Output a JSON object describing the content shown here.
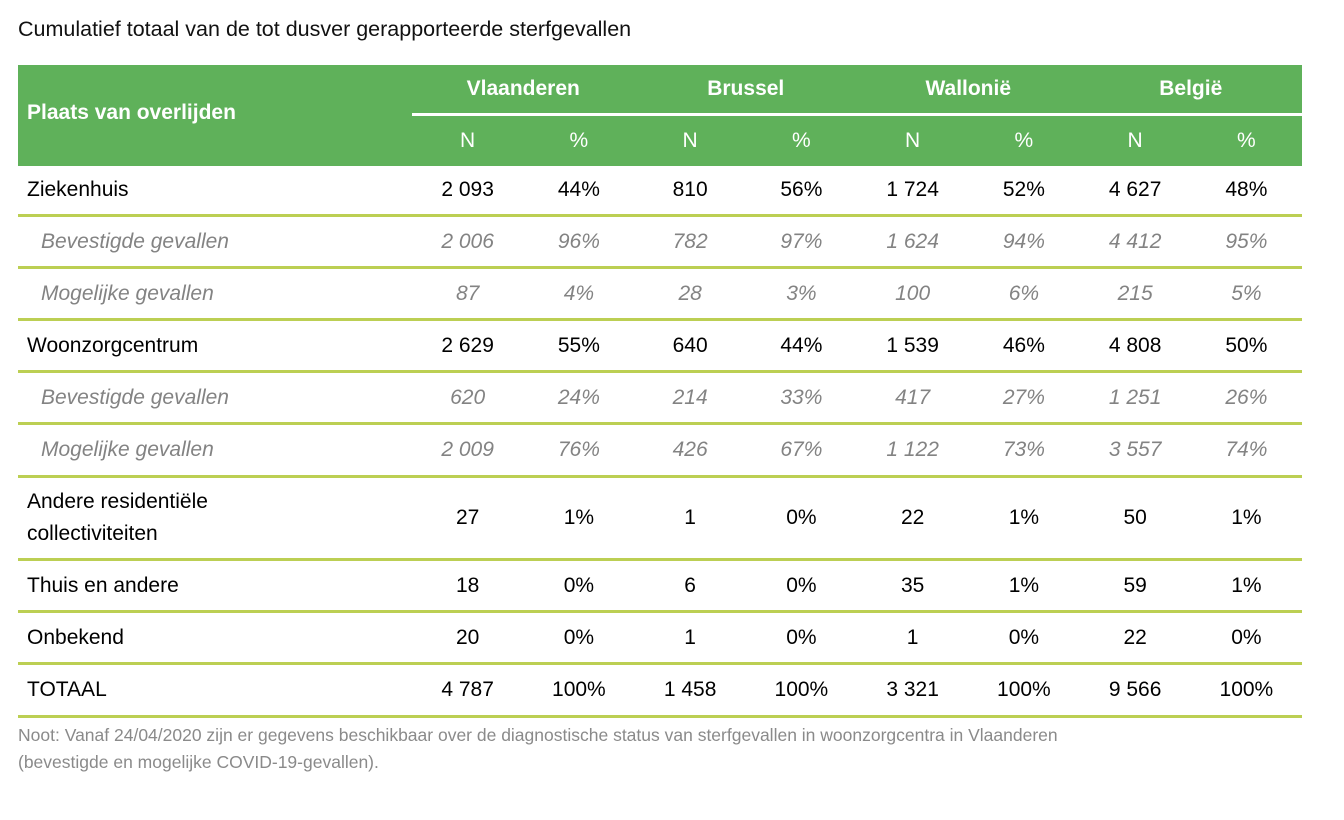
{
  "title": "Cumulatief totaal van de tot dusver gerapporteerde sterfgevallen",
  "table": {
    "header": {
      "place_label": "Plaats van overlijden",
      "regions": [
        "Vlaanderen",
        "Brussel",
        "Wallonië",
        "België"
      ],
      "subcolumns": [
        "N",
        "%",
        "N",
        "%",
        "N",
        "%",
        "N",
        "%"
      ]
    },
    "rows": [
      {
        "type": "main",
        "label": "Ziekenhuis",
        "values": [
          "2 093",
          "44%",
          "810",
          "56%",
          "1 724",
          "52%",
          "4 627",
          "48%"
        ]
      },
      {
        "type": "sub",
        "label": "Bevestigde gevallen",
        "values": [
          "2 006",
          "96%",
          "782",
          "97%",
          "1 624",
          "94%",
          "4 412",
          "95%"
        ]
      },
      {
        "type": "sub",
        "label": "Mogelijke gevallen",
        "values": [
          "87",
          "4%",
          "28",
          "3%",
          "100",
          "6%",
          "215",
          "5%"
        ]
      },
      {
        "type": "main",
        "label": "Woonzorgcentrum",
        "values": [
          "2 629",
          "55%",
          "640",
          "44%",
          "1 539",
          "46%",
          "4 808",
          "50%"
        ]
      },
      {
        "type": "sub",
        "label": "Bevestigde gevallen",
        "values": [
          "620",
          "24%",
          "214",
          "33%",
          "417",
          "27%",
          "1 251",
          "26%"
        ]
      },
      {
        "type": "sub",
        "label": "Mogelijke gevallen",
        "values": [
          "2 009",
          "76%",
          "426",
          "67%",
          "1 122",
          "73%",
          "3 557",
          "74%"
        ]
      },
      {
        "type": "main",
        "label_lines": [
          "Andere residentiële",
          "collectiviteiten"
        ],
        "values": [
          "27",
          "1%",
          "1",
          "0%",
          "22",
          "1%",
          "50",
          "1%"
        ]
      },
      {
        "type": "main",
        "label": "Thuis en andere",
        "values": [
          "18",
          "0%",
          "6",
          "0%",
          "35",
          "1%",
          "59",
          "1%"
        ]
      },
      {
        "type": "main",
        "label": "Onbekend",
        "values": [
          "20",
          "0%",
          "1",
          "0%",
          "1",
          "0%",
          "22",
          "0%"
        ]
      },
      {
        "type": "main",
        "label": "TOTAAL",
        "values": [
          "4 787",
          "100%",
          "1 458",
          "100%",
          "3 321",
          "100%",
          "9 566",
          "100%"
        ]
      }
    ]
  },
  "note_lines": [
    "Noot: Vanaf 24/04/2020 zijn er gegevens beschikbaar over de diagnostische status van sterfgevallen in woonzorgcentra in Vlaanderen",
    "(bevestigde en mogelijke COVID-19-gevallen)."
  ],
  "colors": {
    "header_bg": "#5fb15a",
    "row_line": "#bccf53",
    "sub_text": "#838383"
  }
}
